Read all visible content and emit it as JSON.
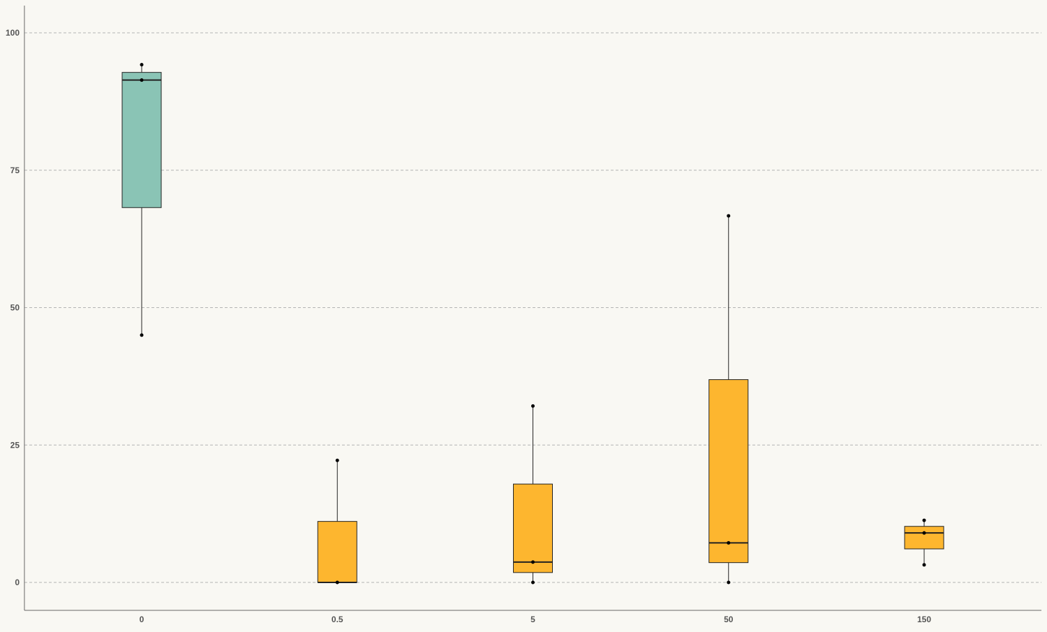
{
  "chart_data": {
    "type": "boxplot",
    "title": "",
    "xlabel": "",
    "ylabel": "",
    "categories": [
      "0",
      "0.5",
      "5",
      "50",
      "150"
    ],
    "ylim": [
      -5,
      105
    ],
    "yticks": [
      0,
      25,
      50,
      75,
      100
    ],
    "ytick_labels": [
      "0",
      "25",
      "50",
      "75",
      "100"
    ],
    "grid": "horizontal-dashed",
    "boxes": [
      {
        "category": "0",
        "min": 45.0,
        "q1": 68.2,
        "median": 91.4,
        "q3": 92.8,
        "max": 94.2,
        "color": "#8ac4b5",
        "points": [
          94.2,
          91.4,
          45.0
        ]
      },
      {
        "category": "0.5",
        "min": 0.0,
        "q1": 0.0,
        "median": 0.0,
        "q3": 11.1,
        "max": 22.2,
        "color": "#fdb62f",
        "points": [
          22.2,
          0.0
        ]
      },
      {
        "category": "5",
        "min": 0.0,
        "q1": 1.8,
        "median": 3.7,
        "q3": 17.9,
        "max": 32.1,
        "color": "#fdb62f",
        "points": [
          32.1,
          3.7,
          0.0
        ]
      },
      {
        "category": "50",
        "min": 0.0,
        "q1": 3.6,
        "median": 7.2,
        "q3": 36.9,
        "max": 66.7,
        "color": "#fdb62f",
        "points": [
          66.7,
          7.2,
          0.0
        ]
      },
      {
        "category": "150",
        "min": 3.2,
        "q1": 6.1,
        "median": 9.0,
        "q3": 10.2,
        "max": 11.3,
        "color": "#fdb62f",
        "points": [
          11.3,
          9.0,
          3.2
        ]
      }
    ],
    "colors": {
      "background": "#f9f8f3",
      "grid": "#b3b3b3",
      "axis": "#666666",
      "stroke": "#222222"
    }
  }
}
